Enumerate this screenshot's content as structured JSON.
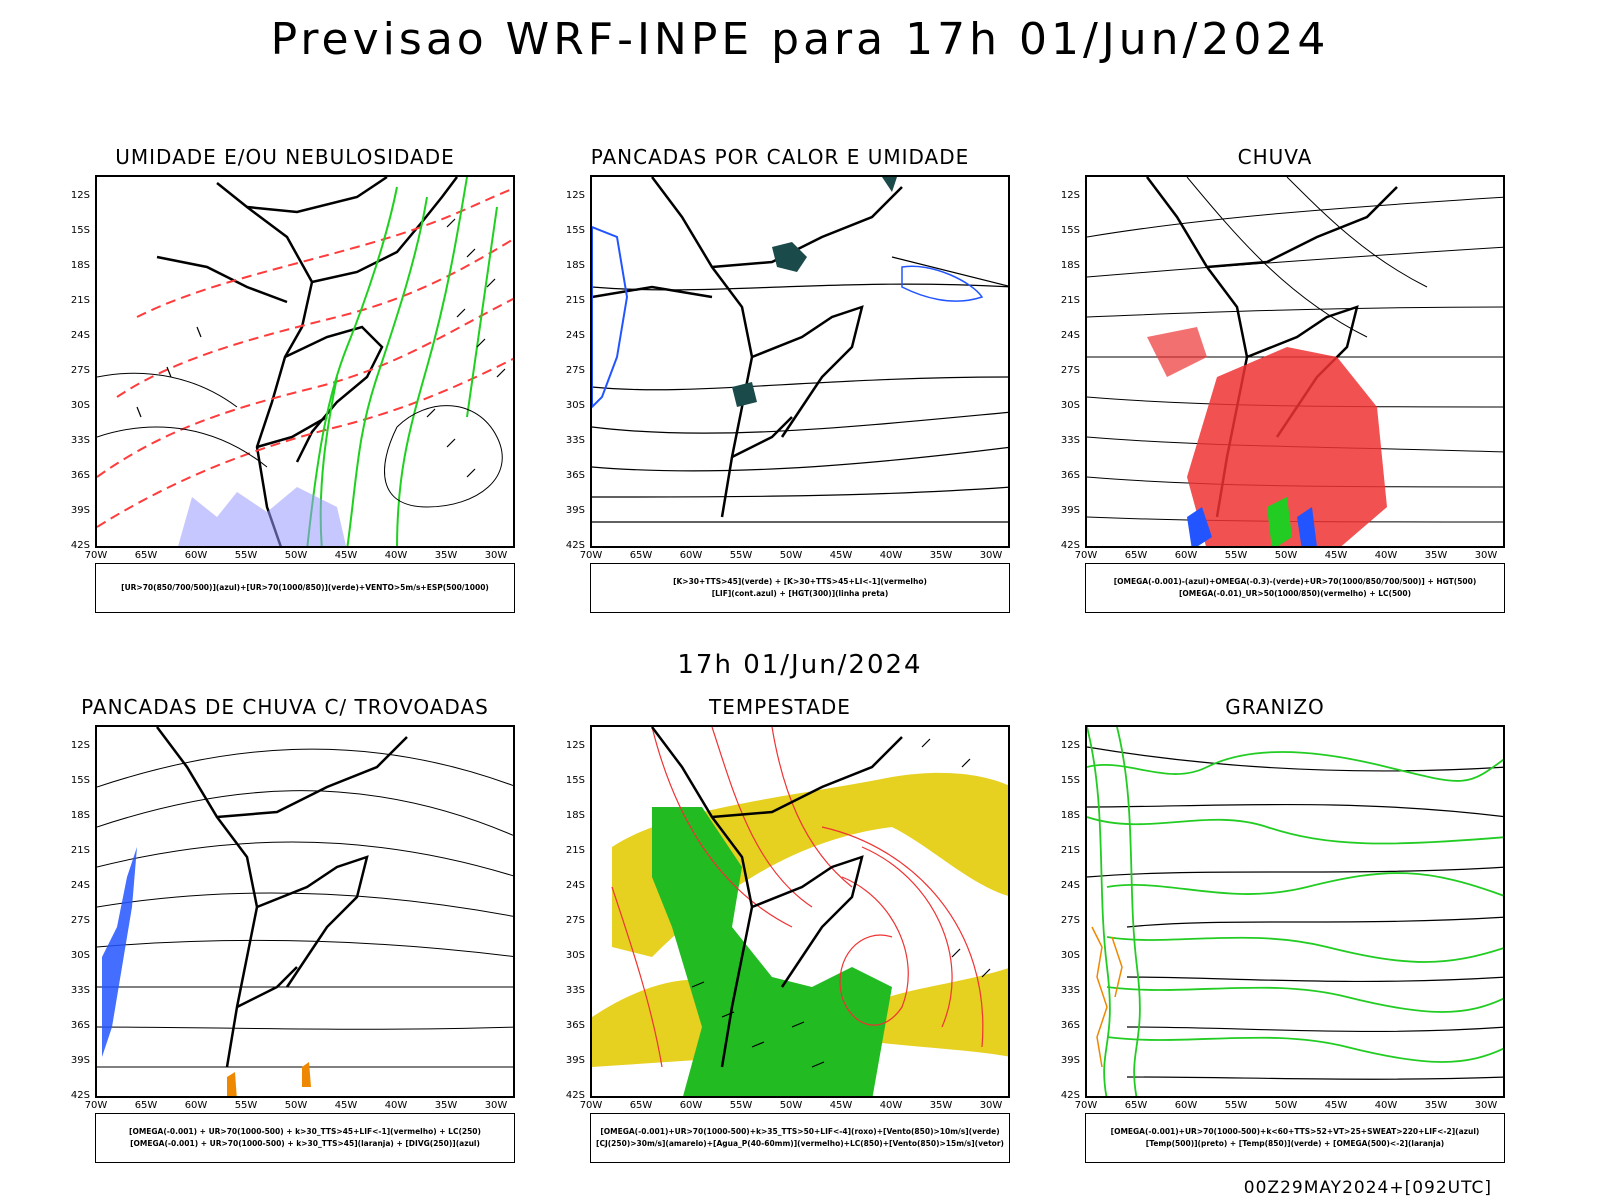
{
  "header": {
    "title": "Previsao WRF-INPE  para 17h 01/Jun/2024"
  },
  "mid_label": "17h 01/Jun/2024",
  "run_label": "00Z29MAY2024+[092UTC]",
  "lat_ticks": [
    "12S",
    "15S",
    "18S",
    "21S",
    "24S",
    "27S",
    "30S",
    "33S",
    "36S",
    "39S",
    "42S"
  ],
  "lon_ticks": [
    "70W",
    "65W",
    "60W",
    "55W",
    "50W",
    "45W",
    "40W",
    "35W",
    "30W"
  ],
  "panels": [
    {
      "title": "UMIDADE E/OU NEBULOSIDADE",
      "legend": [
        "[UR>70(850/700/500)](azul)+[UR>70(1000/850)](verde)+VENTO>5m/s+ESP(500/1000)"
      ],
      "colors": [
        "#1fd01f",
        "#ff3b3b",
        "#9999ff"
      ]
    },
    {
      "title": "PANCADAS POR CALOR E UMIDADE",
      "legend": [
        "[K>30+TTS>45](verde) + [K>30+TTS>45+LI<-1](vermelho)",
        "[LIF](cont.azul) + [HGT(300)](linha preta)"
      ],
      "colors": [
        "#1a4a4a",
        "#2255ff"
      ]
    },
    {
      "title": "CHUVA",
      "legend": [
        "[OMEGA(-0.001)-(azul)+OMEGA(-0.3)-(verde)+UR>70(1000/850/700/500)] + HGT(500)",
        "[OMEGA(-0.01)_UR>50(1000/850)(vermelho) + LC(500)"
      ],
      "colors": [
        "#ee3333",
        "#2255ff",
        "#22cc22"
      ]
    },
    {
      "title": "PANCADAS DE CHUVA C/ TROVOADAS",
      "legend": [
        "[OMEGA(-0.001) + UR>70(1000-500) + k>30_TTS>45+LIF<-1](vermelho) + LC(250)",
        "[OMEGA(-0.001) + UR>70(1000-500) + k>30_TTS>45](laranja) + [DIVG(250)](azul)"
      ],
      "colors": [
        "#2255ff",
        "#ee8800"
      ]
    },
    {
      "title": "TEMPESTADE",
      "legend": [
        "[OMEGA(-0.001)+UR>70(1000-500)+k>35_TTS>50+LIF<-4](roxo)+[Vento(850)>10m/s](verde)",
        "[CJ(250)>30m/s](amarelo)+[Agua_P(40-60mm)](vermelho)+LC(850)+[Vento(850)>15m/s](vetor)"
      ],
      "colors": [
        "#e6d020",
        "#22bb22",
        "#ee3333"
      ]
    },
    {
      "title": "GRANIZO",
      "legend": [
        "[OMEGA(-0.001)+UR>70(1000-500)+k<60+TTS>52+VT>25+SWEAT>220+LIF<-2](azul)",
        "[Temp(500)](preto) + [Temp(850)](verde) + [OMEGA(500)<-2](laranja)"
      ],
      "colors": [
        "#22cc22",
        "#ee8800"
      ]
    }
  ]
}
